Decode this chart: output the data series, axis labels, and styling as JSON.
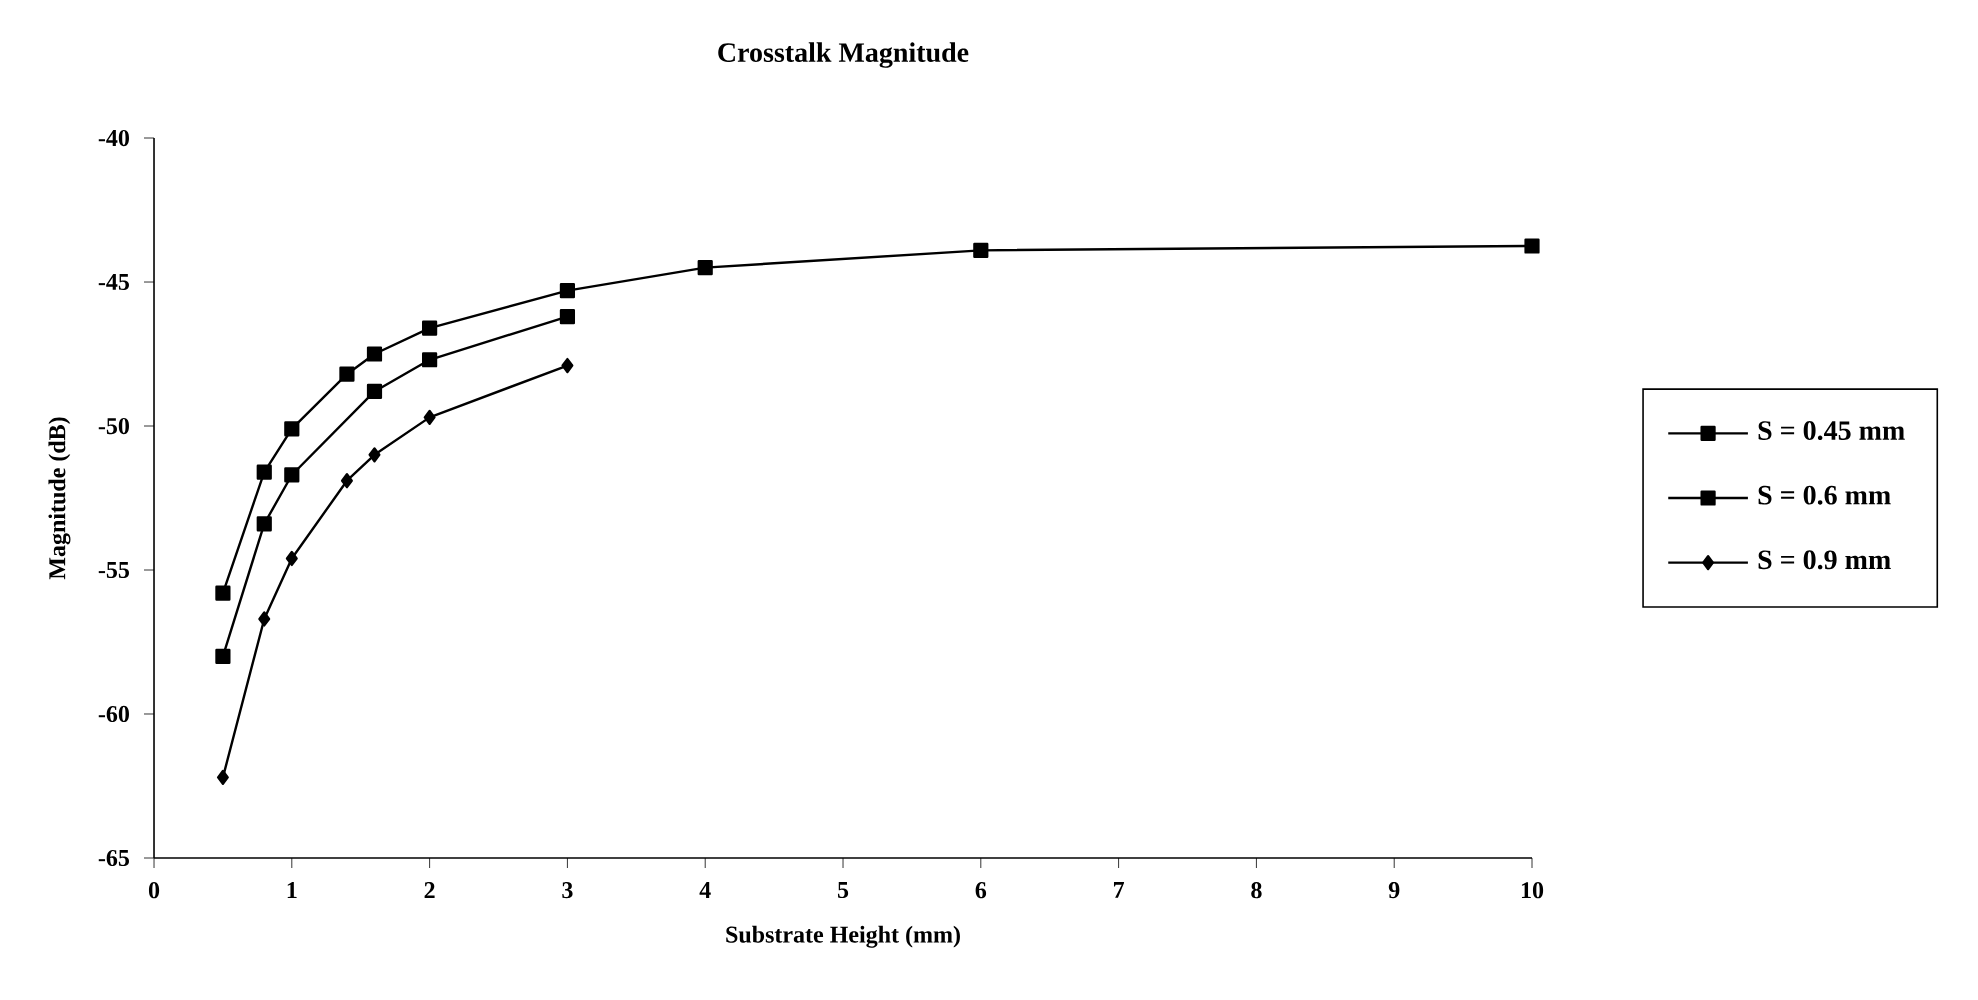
{
  "chart_data": {
    "type": "line",
    "title": "Crosstalk Magnitude",
    "xlabel": "Substrate Height (mm)",
    "ylabel": "Magnitude (dB)",
    "xlim": [
      0,
      10
    ],
    "xticks": [
      0,
      1,
      2,
      3,
      4,
      5,
      6,
      7,
      8,
      9,
      10
    ],
    "ylim": [
      -65,
      -40
    ],
    "yticks": [
      -65,
      -60,
      -55,
      -50,
      -45,
      -40
    ],
    "grid": false,
    "legend": "right",
    "line_style": "solid",
    "series": [
      {
        "name": "S = 0.45 mm",
        "color": "#000000",
        "marker": "square",
        "x": [
          0.5,
          0.8,
          1,
          1.4,
          1.6,
          2,
          3,
          4,
          6,
          10
        ],
        "values": [
          -55.8,
          -51.6,
          -50.1,
          -48.2,
          -47.5,
          -46.6,
          -45.3,
          -44.5,
          -43.9,
          -43.75
        ]
      },
      {
        "name": "S = 0.6 mm",
        "color": "#000000",
        "marker": "square",
        "x": [
          0.5,
          0.8,
          1,
          1.6,
          2,
          3
        ],
        "values": [
          -58.0,
          -53.4,
          -51.7,
          -48.8,
          -47.7,
          -46.2
        ]
      },
      {
        "name": "S = 0.9 mm",
        "color": "#000000",
        "marker": "diamond",
        "x": [
          0.5,
          0.8,
          1,
          1.4,
          1.6,
          2,
          3
        ],
        "values": [
          -62.2,
          -56.7,
          -54.6,
          -51.9,
          -51.0,
          -49.7,
          -47.9
        ]
      }
    ]
  }
}
